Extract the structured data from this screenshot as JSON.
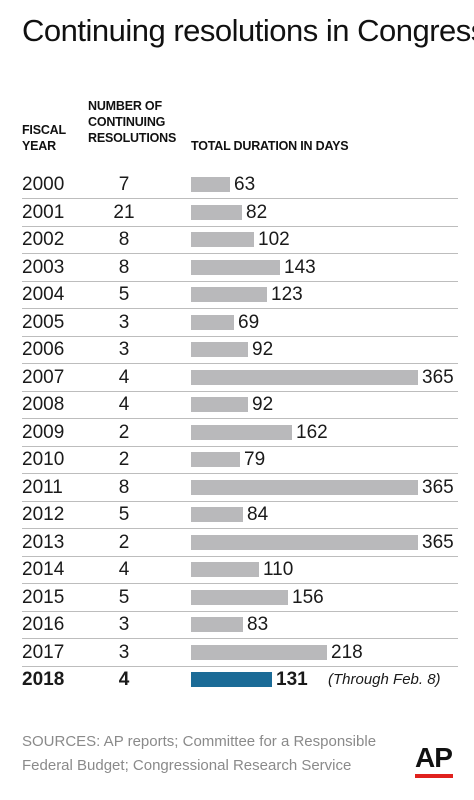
{
  "title": "Continuing resolutions in Congress",
  "headers": {
    "fiscal_year": "FISCAL YEAR",
    "number": "NUMBER OF CONTINUING RESOLUTIONS",
    "duration": "TOTAL DURATION IN DAYS"
  },
  "source": "SOURCES: AP reports; Committee for a Responsible Federal Budget; Congressional Research Service",
  "logo": "AP",
  "colors": {
    "bar": "#b9b9bb",
    "highlight": "#1b6b97",
    "logo_accent": "#e0211d"
  },
  "chart_data": {
    "type": "bar",
    "orientation": "horizontal",
    "title": "Continuing resolutions in Congress",
    "columns": [
      "FISCAL YEAR",
      "NUMBER OF CONTINUING RESOLUTIONS",
      "TOTAL DURATION IN DAYS"
    ],
    "xlim": [
      0,
      365
    ],
    "grid": false,
    "rows": [
      {
        "year": "2000",
        "resolutions": "7",
        "days": 63
      },
      {
        "year": "2001",
        "resolutions": "21",
        "days": 82
      },
      {
        "year": "2002",
        "resolutions": "8",
        "days": 102
      },
      {
        "year": "2003",
        "resolutions": "8",
        "days": 143
      },
      {
        "year": "2004",
        "resolutions": "5",
        "days": 123
      },
      {
        "year": "2005",
        "resolutions": "3",
        "days": 69
      },
      {
        "year": "2006",
        "resolutions": "3",
        "days": 92
      },
      {
        "year": "2007",
        "resolutions": "4",
        "days": 365
      },
      {
        "year": "2008",
        "resolutions": "4",
        "days": 92
      },
      {
        "year": "2009",
        "resolutions": "2",
        "days": 162
      },
      {
        "year": "2010",
        "resolutions": "2",
        "days": 79
      },
      {
        "year": "2011",
        "resolutions": "8",
        "days": 365
      },
      {
        "year": "2012",
        "resolutions": "5",
        "days": 84
      },
      {
        "year": "2013",
        "resolutions": "2",
        "days": 365
      },
      {
        "year": "2014",
        "resolutions": "4",
        "days": 110
      },
      {
        "year": "2015",
        "resolutions": "5",
        "days": 156
      },
      {
        "year": "2016",
        "resolutions": "3",
        "days": 83
      },
      {
        "year": "2017",
        "resolutions": "3",
        "days": 218
      },
      {
        "year": "2018",
        "resolutions": "4",
        "days": 131,
        "highlight": true,
        "note": "(Through Feb. 8)"
      }
    ]
  }
}
